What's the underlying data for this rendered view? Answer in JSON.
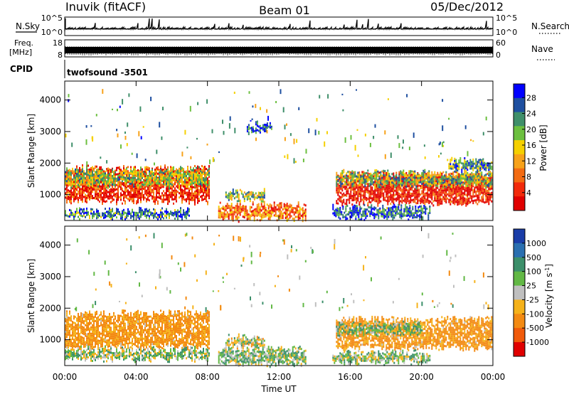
{
  "header": {
    "station": "Inuvik (fitACF)",
    "beam": "Beam 01",
    "date": "05/Dec/2012"
  },
  "top_panels": {
    "nsky_label": "N.Sky",
    "nsky_ticks": [
      "10^5",
      "10^0"
    ],
    "nsearch_label": "N.Search",
    "freq_label_1": "Freq.",
    "freq_label_2": "[MHz]",
    "freq_ticks": [
      "18",
      "8"
    ],
    "nave_label": "Nave",
    "nave_ticks": [
      "60",
      "0"
    ],
    "cpid_label": "CPID",
    "cpid_value": "twofsound -3501"
  },
  "colors": {
    "power_scale": [
      "#0000ff",
      "#1e4fa0",
      "#3f8f6a",
      "#6cbf3f",
      "#f5d000",
      "#f7a21a",
      "#f36b12",
      "#f22a0b",
      "#e00000"
    ],
    "velocity_scale": [
      "#1a3da8",
      "#2a6fb0",
      "#3c8f6a",
      "#62b845",
      "#bfbfbf",
      "#f5b21a",
      "#f38a12",
      "#f05a0a",
      "#e00000"
    ]
  },
  "chart_data": [
    {
      "type": "heatmap",
      "panel": "power",
      "xlabel": "Time UT",
      "ylabel": "Slant Range [km]",
      "colorbar_label": "Power [dB]",
      "colorbar_ticks": [
        "28",
        "24",
        "20",
        "16",
        "12",
        "8",
        "4"
      ],
      "x_ticks": [
        "00:00",
        "04:00",
        "08:00",
        "12:00",
        "16:00",
        "20:00",
        "00:00"
      ],
      "y_ticks": [
        "1000",
        "2000",
        "3000",
        "4000"
      ],
      "xlim_hours": [
        0,
        24
      ],
      "ylim_km": [
        180,
        4600
      ],
      "regions": [
        {
          "t": [
            0.0,
            8.1
          ],
          "r": [
            800,
            1850
          ],
          "level": 0.85
        },
        {
          "t": [
            0.0,
            8.1
          ],
          "r": [
            1300,
            1800
          ],
          "level": 0.45
        },
        {
          "t": [
            0.0,
            7.0
          ],
          "r": [
            300,
            500
          ],
          "level": 0.25
        },
        {
          "t": [
            8.6,
            13.5
          ],
          "r": [
            250,
            700
          ],
          "level": 0.7
        },
        {
          "t": [
            9.0,
            11.2
          ],
          "r": [
            850,
            1100
          ],
          "level": 0.4
        },
        {
          "t": [
            10.2,
            11.6
          ],
          "r": [
            3050,
            3250
          ],
          "level": 0.15
        },
        {
          "t": [
            15.2,
            23.9
          ],
          "r": [
            750,
            1650
          ],
          "level": 0.9
        },
        {
          "t": [
            15.2,
            23.9
          ],
          "r": [
            1300,
            1700
          ],
          "level": 0.4
        },
        {
          "t": [
            15.0,
            20.5
          ],
          "r": [
            300,
            600
          ],
          "level": 0.2
        },
        {
          "t": [
            21.5,
            23.9
          ],
          "r": [
            1800,
            2100
          ],
          "level": 0.3
        }
      ]
    },
    {
      "type": "heatmap",
      "panel": "velocity",
      "xlabel": "Time UT",
      "ylabel": "Slant Range [km]",
      "colorbar_label": "Velocity [m s^-1]",
      "colorbar_ticks": [
        "1000",
        "500",
        "100",
        "25",
        "-25",
        "-100",
        "-500",
        "-1000"
      ],
      "x_ticks": [
        "00:00",
        "04:00",
        "08:00",
        "12:00",
        "16:00",
        "20:00",
        "00:00"
      ],
      "y_ticks": [
        "1000",
        "2000",
        "3000",
        "4000"
      ],
      "xlim_hours": [
        0,
        24
      ],
      "ylim_km": [
        180,
        4600
      ],
      "regions": [
        {
          "t": [
            0.0,
            8.1
          ],
          "r": [
            800,
            1850
          ],
          "level": -150
        },
        {
          "t": [
            0.0,
            8.1
          ],
          "r": [
            400,
            700
          ],
          "level": 50
        },
        {
          "t": [
            8.6,
            13.5
          ],
          "r": [
            250,
            700
          ],
          "level": 50
        },
        {
          "t": [
            9.0,
            11.2
          ],
          "r": [
            800,
            1100
          ],
          "level": 0
        },
        {
          "t": [
            15.2,
            23.9
          ],
          "r": [
            750,
            1650
          ],
          "level": -150
        },
        {
          "t": [
            15.2,
            20.0
          ],
          "r": [
            1200,
            1500
          ],
          "level": 60
        },
        {
          "t": [
            15.0,
            20.5
          ],
          "r": [
            300,
            600
          ],
          "level": 50
        }
      ]
    }
  ]
}
